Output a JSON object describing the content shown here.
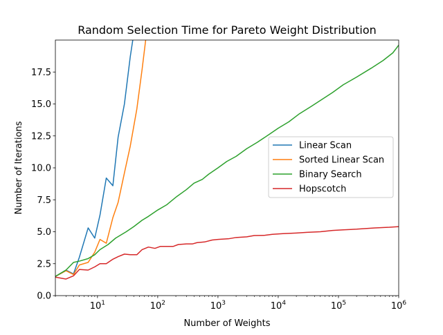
{
  "chart_data": {
    "type": "line",
    "title": "Random Selection Time for Pareto Weight Distribution",
    "xlabel": "Number of Weights",
    "ylabel": "Number of Iterations",
    "xscale": "log",
    "xlim": [
      2,
      1000000
    ],
    "ylim": [
      0,
      20
    ],
    "xticks": [
      {
        "value": 10,
        "base": "10",
        "exp": "1"
      },
      {
        "value": 100,
        "base": "10",
        "exp": "2"
      },
      {
        "value": 1000,
        "base": "10",
        "exp": "3"
      },
      {
        "value": 10000,
        "base": "10",
        "exp": "4"
      },
      {
        "value": 100000,
        "base": "10",
        "exp": "5"
      },
      {
        "value": 1000000,
        "base": "10",
        "exp": "6"
      }
    ],
    "yticks": [
      {
        "value": 0,
        "label": "0.0"
      },
      {
        "value": 2.5,
        "label": "2.5"
      },
      {
        "value": 5,
        "label": "5.0"
      },
      {
        "value": 7.5,
        "label": "7.5"
      },
      {
        "value": 10,
        "label": "10.0"
      },
      {
        "value": 12.5,
        "label": "12.5"
      },
      {
        "value": 15,
        "label": "15.0"
      },
      {
        "value": 17.5,
        "label": "17.5"
      }
    ],
    "grid": false,
    "legend_position": "center-right",
    "series": [
      {
        "name": "Linear Scan",
        "color": "#1f77b4",
        "points": [
          [
            2,
            1.5
          ],
          [
            3,
            2.0
          ],
          [
            4,
            1.7
          ],
          [
            5,
            3.0
          ],
          [
            7,
            5.3
          ],
          [
            9,
            4.5
          ],
          [
            11,
            6.3
          ],
          [
            14,
            9.2
          ],
          [
            18,
            8.6
          ],
          [
            22,
            12.4
          ],
          [
            28,
            15.0
          ],
          [
            35,
            18.7
          ],
          [
            40,
            20.5
          ]
        ]
      },
      {
        "name": "Sorted Linear Scan",
        "color": "#ff7f0e",
        "points": [
          [
            2,
            1.5
          ],
          [
            3,
            1.95
          ],
          [
            4,
            1.65
          ],
          [
            5,
            2.4
          ],
          [
            7,
            2.6
          ],
          [
            9,
            3.4
          ],
          [
            11,
            4.4
          ],
          [
            14,
            4.1
          ],
          [
            18,
            6.1
          ],
          [
            22,
            7.3
          ],
          [
            28,
            9.6
          ],
          [
            35,
            11.7
          ],
          [
            45,
            14.6
          ],
          [
            55,
            17.7
          ],
          [
            65,
            20.5
          ]
        ]
      },
      {
        "name": "Binary Search",
        "color": "#2ca02c",
        "points": [
          [
            2,
            1.5
          ],
          [
            3,
            2.0
          ],
          [
            4,
            2.6
          ],
          [
            5,
            2.7
          ],
          [
            7,
            2.9
          ],
          [
            9,
            3.2
          ],
          [
            11,
            3.6
          ],
          [
            15,
            4.0
          ],
          [
            20,
            4.5
          ],
          [
            30,
            5.0
          ],
          [
            40,
            5.4
          ],
          [
            55,
            5.9
          ],
          [
            70,
            6.2
          ],
          [
            100,
            6.7
          ],
          [
            140,
            7.1
          ],
          [
            200,
            7.7
          ],
          [
            300,
            8.3
          ],
          [
            400,
            8.8
          ],
          [
            550,
            9.1
          ],
          [
            700,
            9.5
          ],
          [
            1000,
            10.0
          ],
          [
            1400,
            10.5
          ],
          [
            2000,
            10.9
          ],
          [
            3000,
            11.5
          ],
          [
            4500,
            12.0
          ],
          [
            7000,
            12.6
          ],
          [
            10000,
            13.1
          ],
          [
            15000,
            13.6
          ],
          [
            22000,
            14.2
          ],
          [
            35000,
            14.8
          ],
          [
            55000,
            15.4
          ],
          [
            80000,
            15.9
          ],
          [
            120000,
            16.5
          ],
          [
            200000,
            17.1
          ],
          [
            350000,
            17.8
          ],
          [
            550000,
            18.4
          ],
          [
            800000,
            19.0
          ],
          [
            1000000,
            19.6
          ]
        ]
      },
      {
        "name": "Hopscotch",
        "color": "#d62728",
        "points": [
          [
            2,
            1.45
          ],
          [
            3,
            1.3
          ],
          [
            4,
            1.55
          ],
          [
            5,
            2.05
          ],
          [
            7,
            2.0
          ],
          [
            9,
            2.25
          ],
          [
            11,
            2.5
          ],
          [
            14,
            2.5
          ],
          [
            18,
            2.85
          ],
          [
            22,
            3.05
          ],
          [
            28,
            3.25
          ],
          [
            35,
            3.2
          ],
          [
            45,
            3.2
          ],
          [
            55,
            3.6
          ],
          [
            70,
            3.8
          ],
          [
            90,
            3.7
          ],
          [
            110,
            3.85
          ],
          [
            150,
            3.85
          ],
          [
            180,
            3.85
          ],
          [
            220,
            4.0
          ],
          [
            300,
            4.05
          ],
          [
            380,
            4.05
          ],
          [
            450,
            4.15
          ],
          [
            600,
            4.2
          ],
          [
            800,
            4.35
          ],
          [
            1000,
            4.4
          ],
          [
            1500,
            4.45
          ],
          [
            2000,
            4.55
          ],
          [
            3000,
            4.6
          ],
          [
            4000,
            4.7
          ],
          [
            6000,
            4.72
          ],
          [
            8000,
            4.8
          ],
          [
            12000,
            4.85
          ],
          [
            20000,
            4.9
          ],
          [
            30000,
            4.95
          ],
          [
            50000,
            5.0
          ],
          [
            80000,
            5.1
          ],
          [
            120000,
            5.15
          ],
          [
            200000,
            5.2
          ],
          [
            400000,
            5.3
          ],
          [
            700000,
            5.35
          ],
          [
            1000000,
            5.4
          ]
        ]
      }
    ]
  }
}
